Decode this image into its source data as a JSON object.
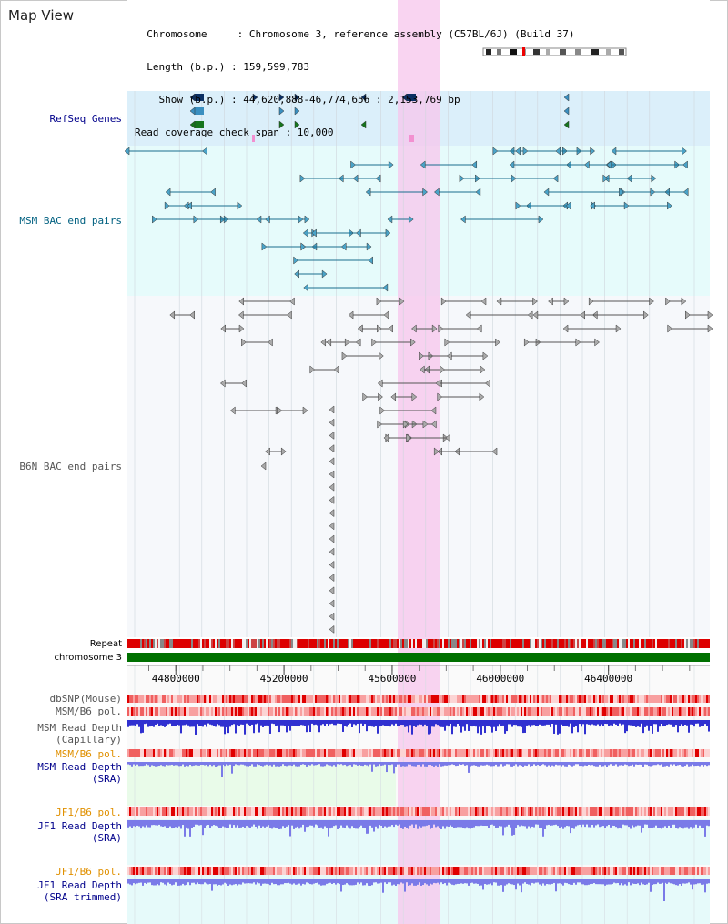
{
  "header": {
    "title": "Map View",
    "info_lines": [
      "  Chromosome     : Chromosome 3, reference assembly (C57BL/6J) (Build 37)",
      "  Length (b.p.) : 159,599,783",
      "    Show (b.p.) : 44,620,888-46,774,656 : 2,153,769 bp",
      "Read coverage check span : 10,000"
    ]
  },
  "tracks": {
    "refseq": "RefSeq Genes",
    "msm_bac": "MSM BAC end pairs",
    "b6n_bac": "B6N BAC end pairs",
    "repeat": "Repeat",
    "chromosome": "chromosome 3",
    "dbsnp": "dbSNP(Mouse)",
    "msm_b6_pol": "MSM/B6 pol.",
    "msm_depth_cap": "MSM Read Depth\n(Capillary)",
    "msm_b6_pol2": "MSM/B6 pol.",
    "msm_depth_sra": "MSM Read Depth\n(SRA)",
    "jf1_b6_pol": "JF1/B6 pol.",
    "jf1_depth_sra": "JF1 Read Depth\n(SRA)",
    "jf1_b6_pol2": "JF1/B6 pol.",
    "jf1_depth_trim": "JF1 Read Depth\n(SRA trimmed)"
  },
  "axis": {
    "ticks": [
      "44800000",
      "45200000",
      "45600000",
      "46000000",
      "46400000"
    ],
    "tick_values": [
      44800000,
      45200000,
      45600000,
      46000000,
      46400000
    ],
    "range": [
      44620888,
      46774656
    ]
  },
  "colors": {
    "refseq_bg": "#dbeffa",
    "msm_bg": "#e6fbfb",
    "highlight": "#f7c5ec",
    "gene_dark": "#0b2f63",
    "gene_mid": "#3a8fc0",
    "gene_green": "#16751d",
    "msm_line": "#1a6e8e",
    "b6n_line": "#808080",
    "repeat_red": "#dd0000",
    "chromosome_green": "#007000",
    "pol_red": "#f08080",
    "depth_blue": "#3030d0",
    "sra_blue": "#7a7ae8",
    "label_blue": "#00008b",
    "label_teal": "#006080",
    "label_gray": "#555555",
    "label_orange": "#e09000"
  }
}
